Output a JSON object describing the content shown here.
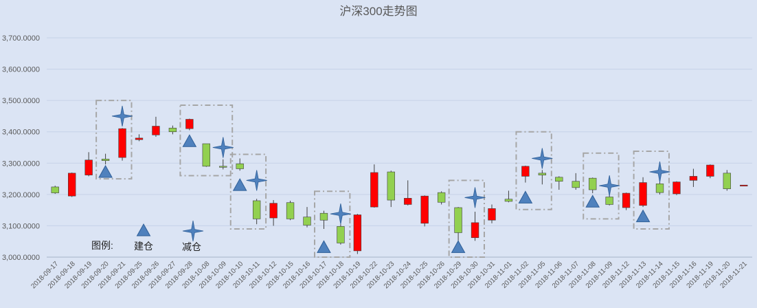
{
  "chart_data": {
    "type": "candlestick",
    "title": "沪深300走势图",
    "ylim": [
      3000,
      3700
    ],
    "y_ticks": [
      "3,000.0000",
      "3,100.0000",
      "3,200.0000",
      "3,300.0000",
      "3,400.0000",
      "3,500.0000",
      "3,600.0000",
      "3,700.0000"
    ],
    "grid": "horizontal",
    "categories": [
      "2018-09-17",
      "2018-09-18",
      "2018-09-19",
      "2018-09-20",
      "2018-09-21",
      "2018-09-25",
      "2018-09-26",
      "2018-09-27",
      "2018-09-28",
      "2018-10-08",
      "2018-10-09",
      "2018-10-10",
      "2018-10-11",
      "2018-10-12",
      "2018-10-15",
      "2018-10-16",
      "2018-10-17",
      "2018-10-18",
      "2018-10-19",
      "2018-10-22",
      "2018-10-23",
      "2018-10-24",
      "2018-10-25",
      "2018-10-26",
      "2018-10-29",
      "2018-10-30",
      "2018-10-31",
      "2018-11-01",
      "2018-11-02",
      "2018-11-05",
      "2018-11-06",
      "2018-11-07",
      "2018-11-08",
      "2018-11-09",
      "2018-11-12",
      "2018-11-13",
      "2018-11-14",
      "2018-11-15",
      "2018-11-16",
      "2018-11-19",
      "2018-11-20",
      "2018-11-21"
    ],
    "candles": [
      {
        "open": 3224,
        "close": 3205,
        "high": 3228,
        "low": 3202
      },
      {
        "open": 3195,
        "close": 3268,
        "high": 3270,
        "low": 3192
      },
      {
        "open": 3262,
        "close": 3310,
        "high": 3335,
        "low": 3258
      },
      {
        "open": 3313,
        "close": 3308,
        "high": 3330,
        "low": 3296
      },
      {
        "open": 3318,
        "close": 3410,
        "high": 3412,
        "low": 3308
      },
      {
        "open": 3375,
        "close": 3380,
        "high": 3392,
        "low": 3370
      },
      {
        "open": 3390,
        "close": 3418,
        "high": 3448,
        "low": 3384
      },
      {
        "open": 3412,
        "close": 3400,
        "high": 3420,
        "low": 3392
      },
      {
        "open": 3410,
        "close": 3440,
        "high": 3442,
        "low": 3405
      },
      {
        "open": 3362,
        "close": 3290,
        "high": 3362,
        "low": 3288
      },
      {
        "open": 3290,
        "close": 3288,
        "high": 3312,
        "low": 3280
      },
      {
        "open": 3298,
        "close": 3282,
        "high": 3315,
        "low": 3276
      },
      {
        "open": 3180,
        "close": 3122,
        "high": 3186,
        "low": 3105
      },
      {
        "open": 3125,
        "close": 3172,
        "high": 3182,
        "low": 3100
      },
      {
        "open": 3174,
        "close": 3122,
        "high": 3180,
        "low": 3118
      },
      {
        "open": 3128,
        "close": 3102,
        "high": 3160,
        "low": 3095
      },
      {
        "open": 3140,
        "close": 3118,
        "high": 3148,
        "low": 3090
      },
      {
        "open": 3098,
        "close": 3045,
        "high": 3105,
        "low": 3040
      },
      {
        "open": 3020,
        "close": 3135,
        "high": 3138,
        "low": 3010
      },
      {
        "open": 3160,
        "close": 3270,
        "high": 3296,
        "low": 3158
      },
      {
        "open": 3272,
        "close": 3182,
        "high": 3276,
        "low": 3160
      },
      {
        "open": 3168,
        "close": 3188,
        "high": 3245,
        "low": 3165
      },
      {
        "open": 3108,
        "close": 3195,
        "high": 3197,
        "low": 3098
      },
      {
        "open": 3206,
        "close": 3175,
        "high": 3210,
        "low": 3168
      },
      {
        "open": 3158,
        "close": 3078,
        "high": 3160,
        "low": 3050
      },
      {
        "open": 3062,
        "close": 3110,
        "high": 3145,
        "low": 3052
      },
      {
        "open": 3118,
        "close": 3155,
        "high": 3168,
        "low": 3108
      },
      {
        "open": 3185,
        "close": 3178,
        "high": 3212,
        "low": 3175
      },
      {
        "open": 3258,
        "close": 3290,
        "high": 3292,
        "low": 3238
      },
      {
        "open": 3268,
        "close": 3262,
        "high": 3278,
        "low": 3232
      },
      {
        "open": 3255,
        "close": 3242,
        "high": 3258,
        "low": 3215
      },
      {
        "open": 3242,
        "close": 3222,
        "high": 3268,
        "low": 3215
      },
      {
        "open": 3252,
        "close": 3215,
        "high": 3254,
        "low": 3204
      },
      {
        "open": 3192,
        "close": 3168,
        "high": 3215,
        "low": 3165
      },
      {
        "open": 3158,
        "close": 3204,
        "high": 3206,
        "low": 3150
      },
      {
        "open": 3165,
        "close": 3238,
        "high": 3255,
        "low": 3160
      },
      {
        "open": 3234,
        "close": 3206,
        "high": 3248,
        "low": 3200
      },
      {
        "open": 3202,
        "close": 3240,
        "high": 3242,
        "low": 3198
      },
      {
        "open": 3245,
        "close": 3258,
        "high": 3282,
        "low": 3224
      },
      {
        "open": 3258,
        "close": 3294,
        "high": 3296,
        "low": 3252
      },
      {
        "open": 3268,
        "close": 3218,
        "high": 3278,
        "low": 3212
      },
      {
        "open": 3230,
        "close": 3230,
        "high": 3230,
        "low": 3230
      }
    ],
    "build_markers": [
      {
        "index": 3,
        "value": 3270
      },
      {
        "index": 8,
        "value": 3368
      },
      {
        "index": 11,
        "value": 3228
      },
      {
        "index": 16,
        "value": 3030
      },
      {
        "index": 24,
        "value": 3030
      },
      {
        "index": 28,
        "value": 3188
      },
      {
        "index": 32,
        "value": 3175
      },
      {
        "index": 35,
        "value": 3128
      }
    ],
    "reduce_markers": [
      {
        "index": 4,
        "value": 3450
      },
      {
        "index": 10,
        "value": 3350
      },
      {
        "index": 12,
        "value": 3245
      },
      {
        "index": 17,
        "value": 3138
      },
      {
        "index": 25,
        "value": 3190
      },
      {
        "index": 29,
        "value": 3315
      },
      {
        "index": 33,
        "value": 3228
      },
      {
        "index": 36,
        "value": 3272
      }
    ],
    "highlight_boxes": [
      {
        "from_index": 3,
        "to_index": 4,
        "top": 3500,
        "bottom": 3250
      },
      {
        "from_index": 8,
        "to_index": 10,
        "top": 3485,
        "bottom": 3260
      },
      {
        "from_index": 11,
        "to_index": 12,
        "top": 3328,
        "bottom": 3090
      },
      {
        "from_index": 16,
        "to_index": 17,
        "top": 3210,
        "bottom": 3000
      },
      {
        "from_index": 24,
        "to_index": 25,
        "top": 3245,
        "bottom": 3000
      },
      {
        "from_index": 28,
        "to_index": 29,
        "top": 3400,
        "bottom": 3152
      },
      {
        "from_index": 32,
        "to_index": 33,
        "top": 3332,
        "bottom": 3122
      },
      {
        "from_index": 35,
        "to_index": 36,
        "top": 3338,
        "bottom": 3090
      }
    ],
    "colors": {
      "up": "#ff0000",
      "down": "#92d050",
      "marker": "#4f81bd",
      "background": "#dbe4f4",
      "grid": "#c6d2e8"
    },
    "legend": {
      "label": "图例:",
      "build": "建仓",
      "reduce": "减仓"
    }
  }
}
